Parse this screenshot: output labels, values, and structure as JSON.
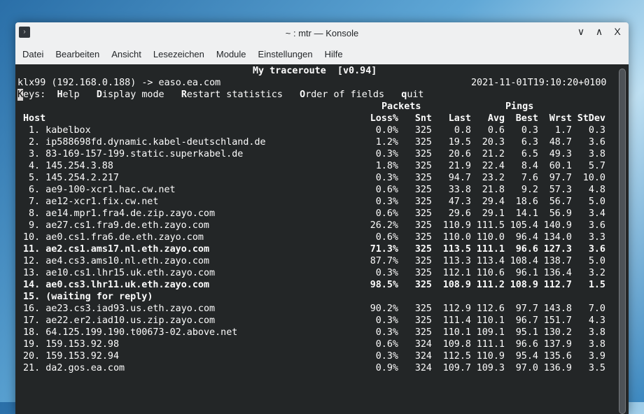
{
  "window": {
    "title": "~ : mtr — Konsole",
    "controls": [
      "∨",
      "∧",
      "X"
    ]
  },
  "menu": [
    "Datei",
    "Bearbeiten",
    "Ansicht",
    "Lesezeichen",
    "Module",
    "Einstellungen",
    "Hilfe"
  ],
  "terminal": {
    "title": "My traceroute  [v0.94]",
    "route": "klx99 (192.168.0.188) -> easo.ea.com",
    "timestamp": "2021-11-01T19:10:20+0100",
    "keys_prefix": "Keys:",
    "keys": [
      {
        "k": "H",
        "rest": "elp"
      },
      {
        "k": "D",
        "rest": "isplay mode"
      },
      {
        "k": "R",
        "rest": "estart statistics"
      },
      {
        "k": "O",
        "rest": "rder of fields"
      },
      {
        "k": "q",
        "rest": "uit"
      }
    ],
    "group_packets": "Packets",
    "group_pings": "Pings",
    "columns": [
      "Host",
      "Loss%",
      "Snt",
      "Last",
      "Avg",
      "Best",
      "Wrst",
      "StDev"
    ],
    "rows": [
      [
        "1. kabelbox",
        "0.0%",
        "325",
        "0.8",
        "0.6",
        "0.3",
        "1.7",
        "0.3",
        false
      ],
      [
        "2. ip588698fd.dynamic.kabel-deutschland.de",
        "1.2%",
        "325",
        "19.5",
        "20.3",
        "6.3",
        "48.7",
        "3.6",
        false
      ],
      [
        "3. 83-169-157-199.static.superkabel.de",
        "0.3%",
        "325",
        "20.6",
        "21.2",
        "6.5",
        "49.3",
        "3.8",
        false
      ],
      [
        "4. 145.254.3.88",
        "1.8%",
        "325",
        "21.9",
        "22.4",
        "8.4",
        "60.1",
        "5.7",
        false
      ],
      [
        "5. 145.254.2.217",
        "0.3%",
        "325",
        "94.7",
        "23.2",
        "7.6",
        "97.7",
        "10.0",
        false
      ],
      [
        "6. ae9-100-xcr1.hac.cw.net",
        "0.6%",
        "325",
        "33.8",
        "21.8",
        "9.2",
        "57.3",
        "4.8",
        false
      ],
      [
        "7. ae12-xcr1.fix.cw.net",
        "0.3%",
        "325",
        "47.3",
        "29.4",
        "18.6",
        "56.7",
        "5.0",
        false
      ],
      [
        "8. ae14.mpr1.fra4.de.zip.zayo.com",
        "0.6%",
        "325",
        "29.6",
        "29.1",
        "14.1",
        "56.9",
        "3.4",
        false
      ],
      [
        "9. ae27.cs1.fra9.de.eth.zayo.com",
        "26.2%",
        "325",
        "110.9",
        "111.5",
        "105.4",
        "140.9",
        "3.6",
        false
      ],
      [
        "10. ae0.cs1.fra6.de.eth.zayo.com",
        "0.6%",
        "325",
        "110.0",
        "110.0",
        "96.4",
        "134.0",
        "3.3",
        false
      ],
      [
        "11. ae2.cs1.ams17.nl.eth.zayo.com",
        "71.3%",
        "325",
        "113.5",
        "111.1",
        "96.6",
        "127.3",
        "3.6",
        true
      ],
      [
        "12. ae4.cs3.ams10.nl.eth.zayo.com",
        "87.7%",
        "325",
        "113.3",
        "113.4",
        "108.4",
        "138.7",
        "5.0",
        false
      ],
      [
        "13. ae10.cs1.lhr15.uk.eth.zayo.com",
        "0.3%",
        "325",
        "112.1",
        "110.6",
        "96.1",
        "136.4",
        "3.2",
        false
      ],
      [
        "14. ae0.cs3.lhr11.uk.eth.zayo.com",
        "98.5%",
        "325",
        "108.9",
        "111.2",
        "108.9",
        "112.7",
        "1.5",
        true
      ],
      [
        "15. (waiting for reply)",
        "",
        "",
        "",
        "",
        "",
        "",
        "",
        true
      ],
      [
        "16. ae23.cs3.iad93.us.eth.zayo.com",
        "90.2%",
        "325",
        "112.9",
        "112.6",
        "97.7",
        "143.8",
        "7.0",
        false
      ],
      [
        "17. ae22.er2.iad10.us.zip.zayo.com",
        "0.3%",
        "325",
        "111.4",
        "110.1",
        "96.7",
        "151.7",
        "4.3",
        false
      ],
      [
        "18. 64.125.199.190.t00673-02.above.net",
        "0.3%",
        "325",
        "110.1",
        "109.1",
        "95.1",
        "130.2",
        "3.8",
        false
      ],
      [
        "19. 159.153.92.98",
        "0.6%",
        "324",
        "109.8",
        "111.1",
        "96.6",
        "137.9",
        "3.8",
        false
      ],
      [
        "20. 159.153.92.94",
        "0.3%",
        "324",
        "112.5",
        "110.9",
        "95.4",
        "135.6",
        "3.9",
        false
      ],
      [
        "21. da2.gos.ea.com",
        "0.9%",
        "324",
        "109.7",
        "109.3",
        "97.0",
        "136.9",
        "3.5",
        false
      ]
    ]
  }
}
